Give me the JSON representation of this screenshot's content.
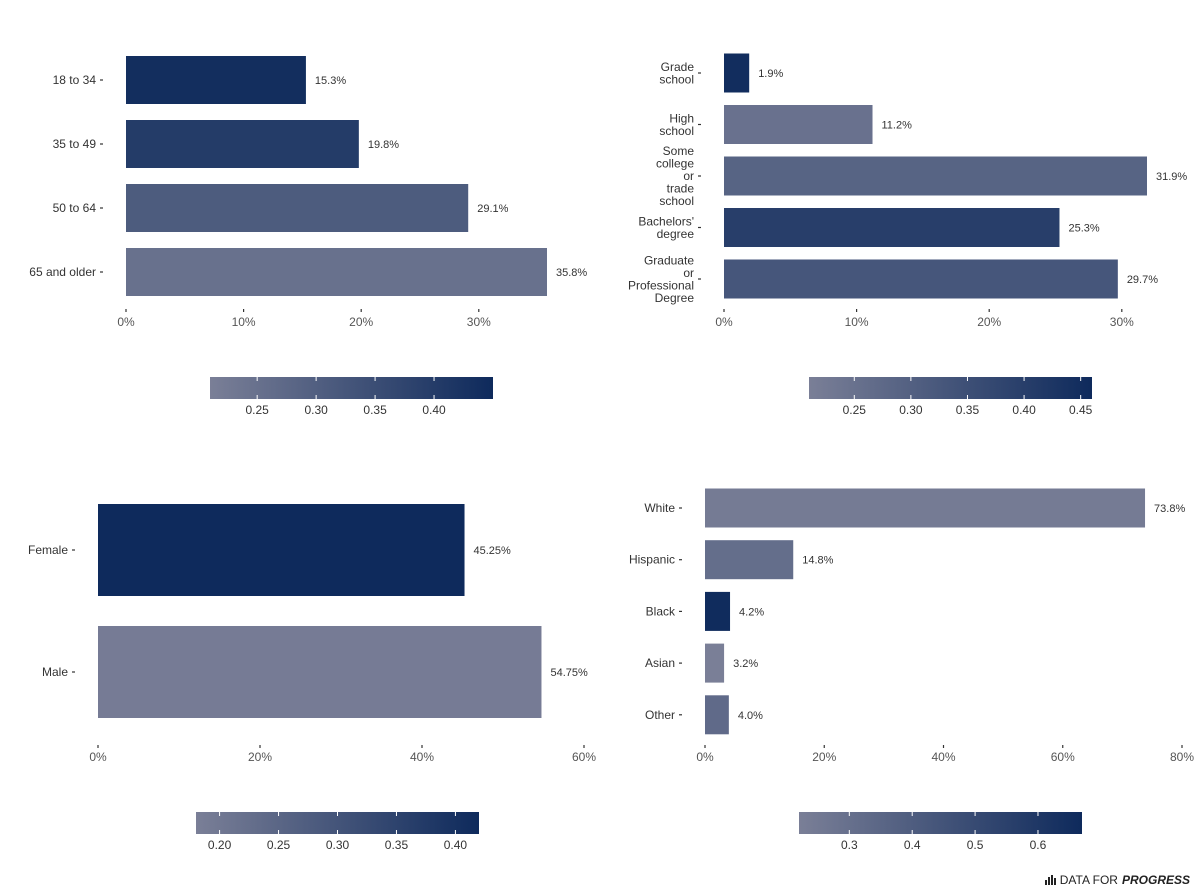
{
  "colors": {
    "scale_low": "#7a7f97",
    "scale_high": "#0e2a5c",
    "text": "#333333",
    "axis_text": "#555555"
  },
  "logo": {
    "prefix": "DATA FOR",
    "brand": "PROGRESS",
    "icon": "bar-chart-icon"
  },
  "chart_data": [
    {
      "type": "bar",
      "orientation": "horizontal",
      "categories": [
        "18 to 34",
        "35 to 49",
        "50 to 64",
        "65 and older"
      ],
      "values": [
        0.153,
        0.198,
        0.291,
        0.358
      ],
      "value_labels": [
        "15.3%",
        "19.8%",
        "29.1%",
        "35.8%"
      ],
      "xlim": [
        0,
        0.358
      ],
      "x_ticks": [
        0,
        0.1,
        0.2,
        0.3
      ],
      "x_tick_labels": [
        "0%",
        "10%",
        "20%",
        "30%"
      ],
      "color_scale": {
        "domain": [
          0.21,
          0.45
        ],
        "ticks": [
          0.25,
          0.3,
          0.35,
          0.4
        ],
        "tick_labels": [
          "0.25",
          "0.30",
          "0.35",
          "0.40"
        ],
        "bar_values": [
          0.44,
          0.4,
          0.31,
          0.25
        ]
      },
      "legend": "bottom",
      "grid": false
    },
    {
      "type": "bar",
      "orientation": "horizontal",
      "categories": [
        "Grade\nschool",
        "High\nschool",
        "Some\ncollege\nor\ntrade\nschool",
        "Bachelors'\ndegree",
        "Graduate\nor\nProfessional\nDegree"
      ],
      "values": [
        0.019,
        0.112,
        0.319,
        0.253,
        0.297
      ],
      "value_labels": [
        "1.9%",
        "11.2%",
        "31.9%",
        "25.3%",
        "29.7%"
      ],
      "xlim": [
        0,
        0.319
      ],
      "x_ticks": [
        0,
        0.1,
        0.2,
        0.3
      ],
      "x_tick_labels": [
        "0%",
        "10%",
        "20%",
        "30%"
      ],
      "color_scale": {
        "domain": [
          0.21,
          0.46
        ],
        "ticks": [
          0.25,
          0.3,
          0.35,
          0.4,
          0.45
        ],
        "tick_labels": [
          "0.25",
          "0.30",
          "0.35",
          "0.40",
          "0.45"
        ],
        "bar_values": [
          0.45,
          0.25,
          0.29,
          0.4,
          0.33
        ]
      },
      "legend": "bottom",
      "grid": false
    },
    {
      "type": "bar",
      "orientation": "horizontal",
      "categories": [
        "Female",
        "Male"
      ],
      "values": [
        0.4525,
        0.5475
      ],
      "value_labels": [
        "45.25%",
        "54.75%"
      ],
      "xlim": [
        0,
        0.6
      ],
      "x_ticks": [
        0,
        0.2,
        0.4,
        0.6
      ],
      "x_tick_labels": [
        "0%",
        "20%",
        "40%",
        "60%"
      ],
      "color_scale": {
        "domain": [
          0.18,
          0.42
        ],
        "ticks": [
          0.2,
          0.25,
          0.3,
          0.35,
          0.4
        ],
        "tick_labels": [
          "0.20",
          "0.25",
          "0.30",
          "0.35",
          "0.40"
        ],
        "bar_values": [
          0.42,
          0.19
        ]
      },
      "legend": "bottom",
      "grid": false
    },
    {
      "type": "bar",
      "orientation": "horizontal",
      "categories": [
        "White",
        "Hispanic",
        "Black",
        "Asian",
        "Other"
      ],
      "values": [
        0.738,
        0.148,
        0.042,
        0.032,
        0.04
      ],
      "value_labels": [
        "73.8%",
        "14.8%",
        "4.2%",
        "3.2%",
        "4.0%"
      ],
      "xlim": [
        0,
        0.8
      ],
      "x_ticks": [
        0,
        0.2,
        0.4,
        0.6,
        0.8
      ],
      "x_tick_labels": [
        "0%",
        "20%",
        "40%",
        "60%",
        "80%"
      ],
      "color_scale": {
        "domain": [
          0.22,
          0.67
        ],
        "ticks": [
          0.3,
          0.4,
          0.5,
          0.6
        ],
        "tick_labels": [
          "0.3",
          "0.4",
          "0.5",
          "0.6"
        ],
        "bar_values": [
          0.24,
          0.31,
          0.66,
          0.22,
          0.33
        ]
      },
      "legend": "bottom",
      "grid": false
    }
  ]
}
